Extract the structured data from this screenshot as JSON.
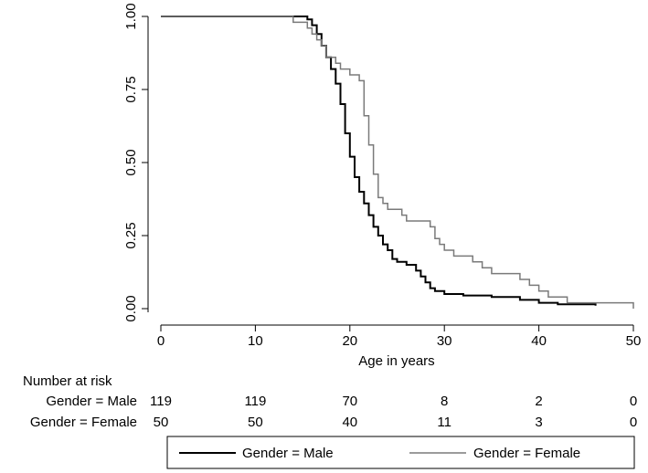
{
  "chart_data": {
    "type": "line",
    "title": "",
    "xlabel": "Age in years",
    "ylabel": "",
    "xlim": [
      0,
      50
    ],
    "ylim": [
      0,
      1
    ],
    "x_ticks": [
      0,
      10,
      20,
      30,
      40,
      50
    ],
    "y_ticks": [
      0,
      0.25,
      0.5,
      0.75,
      1.0
    ],
    "x_tick_labels": [
      "0",
      "10",
      "20",
      "30",
      "40",
      "50"
    ],
    "y_tick_labels": [
      "0.00",
      "0.25",
      "0.50",
      "0.75",
      "1.00"
    ],
    "grid": false,
    "legend_position": "bottom",
    "series": [
      {
        "name": "Gender = Male",
        "color": "#000000",
        "points": [
          [
            0,
            1.0
          ],
          [
            14.8,
            1.0
          ],
          [
            15.5,
            0.99
          ],
          [
            16.0,
            0.97
          ],
          [
            16.5,
            0.94
          ],
          [
            17.0,
            0.9
          ],
          [
            17.5,
            0.86
          ],
          [
            18.0,
            0.82
          ],
          [
            18.5,
            0.77
          ],
          [
            19.0,
            0.7
          ],
          [
            19.5,
            0.6
          ],
          [
            20.0,
            0.52
          ],
          [
            20.5,
            0.45
          ],
          [
            21.0,
            0.4
          ],
          [
            21.5,
            0.36
          ],
          [
            22.0,
            0.32
          ],
          [
            22.5,
            0.28
          ],
          [
            23.0,
            0.25
          ],
          [
            23.5,
            0.22
          ],
          [
            24.0,
            0.2
          ],
          [
            24.5,
            0.17
          ],
          [
            25.0,
            0.16
          ],
          [
            26.0,
            0.15
          ],
          [
            27.0,
            0.13
          ],
          [
            27.5,
            0.11
          ],
          [
            28.0,
            0.09
          ],
          [
            28.5,
            0.07
          ],
          [
            29.0,
            0.06
          ],
          [
            30.0,
            0.05
          ],
          [
            32.0,
            0.045
          ],
          [
            35.0,
            0.04
          ],
          [
            38.0,
            0.03
          ],
          [
            40.0,
            0.02
          ],
          [
            42.0,
            0.015
          ],
          [
            46.0,
            0.01
          ]
        ]
      },
      {
        "name": "Gender = Female",
        "color": "#7a7a7a",
        "points": [
          [
            0,
            1.0
          ],
          [
            13.5,
            1.0
          ],
          [
            14.0,
            0.98
          ],
          [
            15.5,
            0.96
          ],
          [
            16.0,
            0.94
          ],
          [
            16.5,
            0.92
          ],
          [
            17.0,
            0.9
          ],
          [
            17.5,
            0.86
          ],
          [
            18.5,
            0.84
          ],
          [
            19.0,
            0.82
          ],
          [
            20.0,
            0.8
          ],
          [
            21.0,
            0.78
          ],
          [
            21.5,
            0.66
          ],
          [
            22.0,
            0.56
          ],
          [
            22.5,
            0.46
          ],
          [
            23.0,
            0.38
          ],
          [
            23.5,
            0.36
          ],
          [
            24.0,
            0.34
          ],
          [
            25.5,
            0.32
          ],
          [
            26.0,
            0.3
          ],
          [
            28.0,
            0.3
          ],
          [
            28.5,
            0.28
          ],
          [
            29.0,
            0.24
          ],
          [
            29.5,
            0.22
          ],
          [
            30.0,
            0.2
          ],
          [
            31.0,
            0.18
          ],
          [
            33.0,
            0.16
          ],
          [
            34.0,
            0.14
          ],
          [
            35.0,
            0.12
          ],
          [
            37.0,
            0.12
          ],
          [
            38.0,
            0.1
          ],
          [
            39.0,
            0.08
          ],
          [
            40.0,
            0.06
          ],
          [
            41.0,
            0.04
          ],
          [
            43.0,
            0.02
          ],
          [
            50.0,
            0.02
          ],
          [
            50.0,
            0.0
          ]
        ]
      }
    ],
    "risk_table": {
      "heading": "Number at risk",
      "rows": [
        {
          "label": "Gender = Male",
          "values": [
            "119",
            "119",
            "70",
            "8",
            "2",
            "0"
          ]
        },
        {
          "label": "Gender = Female",
          "values": [
            "50",
            "50",
            "40",
            "11",
            "3",
            "0"
          ]
        }
      ]
    },
    "legend": [
      {
        "label": "Gender = Male",
        "color": "#000000"
      },
      {
        "label": "Gender = Female",
        "color": "#7a7a7a"
      }
    ]
  }
}
